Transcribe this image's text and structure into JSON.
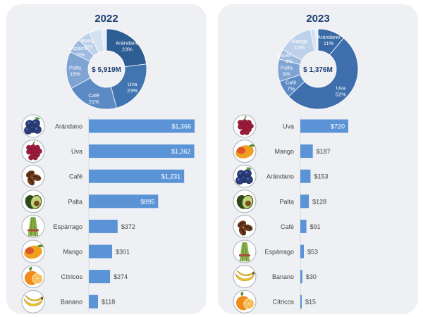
{
  "charts": [
    {
      "year": "2022",
      "total": "$ 5,919M",
      "slices": [
        {
          "label": "Arándano",
          "pct": 23,
          "text": "23%",
          "color": "#2e5d93"
        },
        {
          "label": "Uva",
          "pct": 23,
          "text": "23%",
          "color": "#4175b0"
        },
        {
          "label": "Café",
          "pct": 21,
          "text": "21%",
          "color": "#5b8ac4"
        },
        {
          "label": "Palta",
          "pct": 15,
          "text": "15%",
          "color": "#7fa3d2"
        },
        {
          "label": "Espárrago",
          "pct": 6,
          "text": "6%",
          "color": "#9dbadf"
        },
        {
          "label": "Mango",
          "pct": 5,
          "text": "5%",
          "color": "#bdd1ea"
        },
        {
          "label": "Cítricos",
          "pct": 5,
          "text": "",
          "color": "#d3e1f1"
        },
        {
          "label": "Banano",
          "pct": 2,
          "text": "",
          "color": "#e4ecf7"
        }
      ],
      "bars": [
        {
          "name": "Arándano",
          "value": 1366,
          "label": "$1,366",
          "icon": "blueberry-icon"
        },
        {
          "name": "Uva",
          "value": 1362,
          "label": "$1,362",
          "icon": "grape-icon"
        },
        {
          "name": "Café",
          "value": 1231,
          "label": "$1,231",
          "icon": "coffee-bean-icon"
        },
        {
          "name": "Palta",
          "value": 895,
          "label": "$895",
          "icon": "avocado-icon"
        },
        {
          "name": "Espárrago",
          "value": 372,
          "label": "$372",
          "icon": "asparagus-icon"
        },
        {
          "name": "Mango",
          "value": 301,
          "label": "$301",
          "icon": "mango-icon"
        },
        {
          "name": "Cítricos",
          "value": 274,
          "label": "$274",
          "icon": "citrus-icon"
        },
        {
          "name": "Banano",
          "value": 118,
          "label": "$118",
          "icon": "banana-icon"
        }
      ]
    },
    {
      "year": "2023",
      "total": "$ 1,376M",
      "slices": [
        {
          "label": "Arándano",
          "pct": 11,
          "text": "11%",
          "color": "#3a6aa6"
        },
        {
          "label": "Uva",
          "pct": 52,
          "text": "52%",
          "color": "#3e6fac"
        },
        {
          "label": "Café",
          "pct": 7,
          "text": "7%",
          "color": "#5b8ac4"
        },
        {
          "label": "Palta",
          "pct": 9,
          "text": "9%",
          "color": "#7fa3d2"
        },
        {
          "label": "Espárrago",
          "pct": 4,
          "text": "4%",
          "color": "#9dbadf"
        },
        {
          "label": "Mango",
          "pct": 14,
          "text": "14%",
          "color": "#bdd1ea"
        },
        {
          "label": "Banano",
          "pct": 2,
          "text": "",
          "color": "#d3e1f1"
        },
        {
          "label": "Cítricos",
          "pct": 1,
          "text": "",
          "color": "#e4ecf7"
        }
      ],
      "bars": [
        {
          "name": "Uva",
          "value": 720,
          "label": "$720",
          "icon": "grape-icon"
        },
        {
          "name": "Mango",
          "value": 187,
          "label": "$187",
          "icon": "mango-icon"
        },
        {
          "name": "Arándano",
          "value": 153,
          "label": "$153",
          "icon": "blueberry-icon"
        },
        {
          "name": "Palta",
          "value": 128,
          "label": "$128",
          "icon": "avocado-icon"
        },
        {
          "name": "Café",
          "value": 91,
          "label": "$91",
          "icon": "coffee-bean-icon"
        },
        {
          "name": "Espárrago",
          "value": 53,
          "label": "$53",
          "icon": "asparagus-icon"
        },
        {
          "name": "Banano",
          "value": 30,
          "label": "$30",
          "icon": "banana-icon"
        },
        {
          "name": "Cítricos",
          "value": 15,
          "label": "$15",
          "icon": "citrus-icon"
        }
      ]
    }
  ],
  "chart_data": [
    {
      "type": "pie",
      "title": "2022",
      "center_label": "$ 5,919M",
      "categories": [
        "Arándano",
        "Uva",
        "Café",
        "Palta",
        "Espárrago",
        "Mango",
        "Cítricos",
        "Banano"
      ],
      "values": [
        23,
        23,
        21,
        15,
        6,
        5,
        5,
        2
      ]
    },
    {
      "type": "bar",
      "title": "2022",
      "categories": [
        "Arándano",
        "Uva",
        "Café",
        "Palta",
        "Espárrago",
        "Mango",
        "Cítricos",
        "Banano"
      ],
      "values": [
        1366,
        1362,
        1231,
        895,
        372,
        301,
        274,
        118
      ]
    },
    {
      "type": "pie",
      "title": "2023",
      "center_label": "$ 1,376M",
      "categories": [
        "Arándano",
        "Uva",
        "Café",
        "Palta",
        "Espárrago",
        "Mango",
        "Banano",
        "Cítricos"
      ],
      "values": [
        11,
        52,
        7,
        9,
        4,
        14,
        2,
        1
      ]
    },
    {
      "type": "bar",
      "title": "2023",
      "categories": [
        "Uva",
        "Mango",
        "Arándano",
        "Palta",
        "Café",
        "Espárrago",
        "Banano",
        "Cítricos"
      ],
      "values": [
        720,
        187,
        153,
        128,
        91,
        53,
        30,
        15
      ]
    }
  ]
}
